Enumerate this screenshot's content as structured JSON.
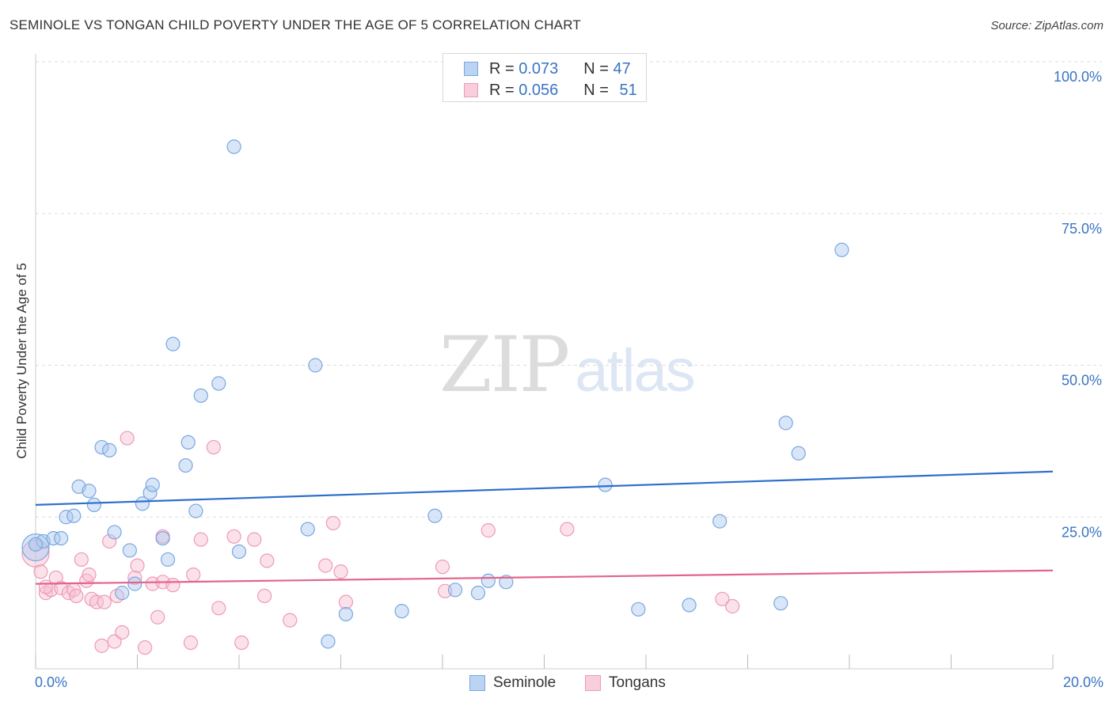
{
  "header": {
    "title": "SEMINOLE VS TONGAN CHILD POVERTY UNDER THE AGE OF 5 CORRELATION CHART",
    "source": "Source: ZipAtlas.com"
  },
  "legend": {
    "seminole": {
      "r_label": "R =",
      "r_value": "0.073",
      "n_label": "N =",
      "n_value": "47"
    },
    "tongans": {
      "r_label": "R =",
      "r_value": "0.056",
      "n_label": "N =",
      "n_value": "51"
    }
  },
  "bottom_legend": {
    "seminole": "Seminole",
    "tongans": "Tongans"
  },
  "axes": {
    "x_min_label": "0.0%",
    "x_max_label": "20.0%",
    "y_tick_labels": [
      "100.0%",
      "75.0%",
      "50.0%",
      "25.0%"
    ]
  },
  "watermark": {
    "zip": "ZIP",
    "atlas": "atlas"
  },
  "colors": {
    "seminole_fill": "#a9c8ef",
    "seminole_stroke": "#7aa7e0",
    "seminole_line": "#2e6fcc",
    "tongans_fill": "#f7bfd0",
    "tongans_stroke": "#ee9ab5",
    "tongans_line": "#e2648c",
    "tick_label": "#3a74c4"
  },
  "chart_data": {
    "type": "scatter",
    "title": "SEMINOLE VS TONGAN CHILD POVERTY UNDER THE AGE OF 5 CORRELATION CHART",
    "xlabel": "",
    "ylabel": "Child Poverty Under the Age of 5",
    "xlim": [
      0,
      20
    ],
    "ylim": [
      0,
      100
    ],
    "x_ticks": [
      0,
      2,
      4,
      6,
      8,
      10,
      12,
      14,
      16,
      18,
      20
    ],
    "y_ticks": [
      25,
      50,
      75,
      100
    ],
    "grid": true,
    "series": [
      {
        "name": "Seminole",
        "R": 0.073,
        "N": 47,
        "trend": {
          "x": [
            0,
            20
          ],
          "y": [
            27.0,
            32.5
          ]
        },
        "points": [
          [
            0.0,
            20.0
          ],
          [
            0.15,
            21.0
          ],
          [
            0.35,
            21.5
          ],
          [
            0.5,
            21.5
          ],
          [
            0.6,
            25.0
          ],
          [
            0.75,
            25.2
          ],
          [
            0.85,
            30.0
          ],
          [
            1.05,
            29.3
          ],
          [
            1.15,
            27.0
          ],
          [
            1.3,
            36.5
          ],
          [
            1.45,
            36.0
          ],
          [
            1.55,
            22.5
          ],
          [
            1.7,
            12.5
          ],
          [
            1.85,
            19.5
          ],
          [
            1.95,
            14.0
          ],
          [
            2.1,
            27.2
          ],
          [
            2.25,
            29.0
          ],
          [
            2.3,
            30.3
          ],
          [
            2.5,
            21.5
          ],
          [
            2.6,
            18.0
          ],
          [
            2.7,
            53.5
          ],
          [
            2.95,
            33.5
          ],
          [
            3.0,
            37.3
          ],
          [
            3.15,
            26.0
          ],
          [
            3.25,
            45.0
          ],
          [
            3.6,
            47.0
          ],
          [
            3.9,
            86.0
          ],
          [
            4.0,
            19.3
          ],
          [
            5.35,
            23.0
          ],
          [
            5.5,
            50.0
          ],
          [
            5.75,
            4.5
          ],
          [
            6.1,
            9.0
          ],
          [
            7.2,
            9.5
          ],
          [
            7.85,
            25.2
          ],
          [
            8.25,
            13.0
          ],
          [
            8.7,
            12.5
          ],
          [
            8.9,
            14.5
          ],
          [
            9.25,
            14.3
          ],
          [
            11.2,
            30.3
          ],
          [
            11.85,
            9.8
          ],
          [
            12.85,
            10.5
          ],
          [
            13.45,
            24.3
          ],
          [
            14.65,
            10.8
          ],
          [
            14.75,
            40.5
          ],
          [
            15.0,
            35.5
          ],
          [
            15.85,
            69.0
          ],
          [
            0.0,
            20.5
          ]
        ]
      },
      {
        "name": "Tongans",
        "R": 0.056,
        "N": 51,
        "trend": {
          "x": [
            0,
            20
          ],
          "y": [
            14.0,
            16.2
          ]
        },
        "points": [
          [
            0.0,
            19.0
          ],
          [
            0.1,
            16.0
          ],
          [
            0.2,
            12.5
          ],
          [
            0.3,
            13.0
          ],
          [
            0.4,
            15.0
          ],
          [
            0.5,
            13.3
          ],
          [
            0.65,
            12.5
          ],
          [
            0.75,
            13.0
          ],
          [
            0.8,
            12.0
          ],
          [
            0.9,
            18.0
          ],
          [
            1.0,
            14.5
          ],
          [
            1.05,
            15.5
          ],
          [
            1.1,
            11.5
          ],
          [
            1.2,
            11.0
          ],
          [
            1.35,
            11.0
          ],
          [
            1.45,
            21.0
          ],
          [
            1.55,
            4.5
          ],
          [
            1.6,
            12.0
          ],
          [
            1.7,
            6.0
          ],
          [
            1.8,
            38.0
          ],
          [
            1.95,
            15.0
          ],
          [
            2.0,
            17.0
          ],
          [
            2.15,
            3.5
          ],
          [
            2.3,
            14.0
          ],
          [
            2.4,
            8.5
          ],
          [
            2.5,
            14.3
          ],
          [
            2.5,
            21.8
          ],
          [
            2.7,
            13.8
          ],
          [
            3.1,
            15.5
          ],
          [
            3.25,
            21.3
          ],
          [
            3.5,
            36.5
          ],
          [
            3.6,
            10.0
          ],
          [
            3.9,
            21.8
          ],
          [
            4.3,
            21.3
          ],
          [
            4.5,
            12.0
          ],
          [
            4.55,
            17.8
          ],
          [
            5.0,
            8.0
          ],
          [
            5.7,
            17.0
          ],
          [
            5.85,
            24.0
          ],
          [
            6.0,
            16.0
          ],
          [
            6.1,
            11.0
          ],
          [
            8.0,
            16.8
          ],
          [
            8.05,
            12.8
          ],
          [
            8.9,
            22.8
          ],
          [
            10.45,
            23.0
          ],
          [
            13.5,
            11.5
          ],
          [
            13.7,
            10.3
          ],
          [
            1.3,
            3.8
          ],
          [
            3.05,
            4.3
          ],
          [
            4.05,
            4.3
          ],
          [
            0.2,
            13.5
          ]
        ]
      }
    ]
  }
}
